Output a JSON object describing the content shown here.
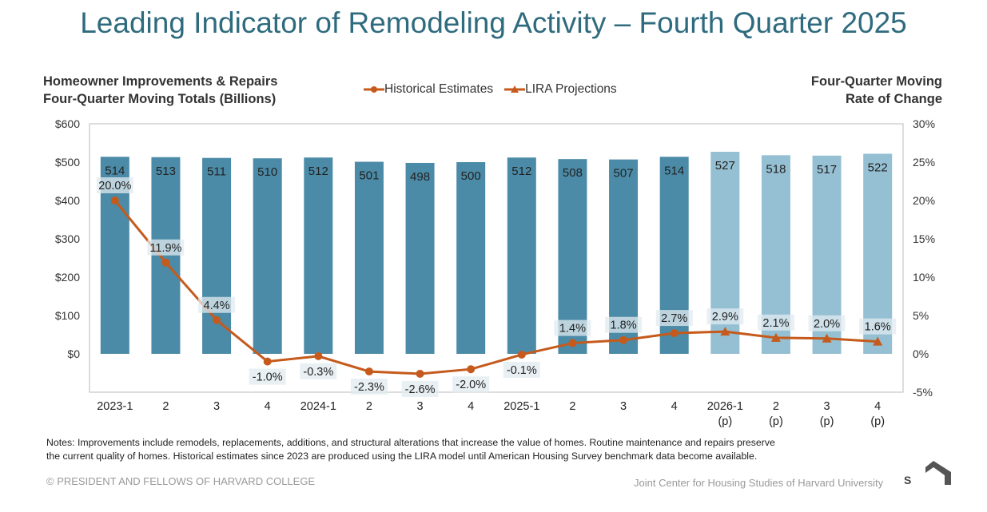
{
  "title": "Leading Indicator of Remodeling Activity – Fourth Quarter 2025",
  "notes_line1": "Notes: Improvements include remodels, replacements, additions, and structural alterations that increase the value of homes. Routine maintenance and repairs preserve",
  "notes_line2": "the current quality of homes. Historical estimates since 2023 are produced using the LIRA model until American Housing Survey benchmark data become available.",
  "copyright": "© PRESIDENT AND FELLOWS OF HARVARD COLLEGE",
  "org": "Joint Center for Housing Studies of Harvard University",
  "logo_text": "JCHS",
  "colors": {
    "historical_bar": "#4b8ba7",
    "projection_bar": "#95bfd2",
    "line": "#c55a1c",
    "title": "#2f6b7e"
  },
  "chart_data": {
    "type": "bar",
    "title": "Leading Indicator of Remodeling Activity – Fourth Quarter 2025",
    "ylabel_line1": "Homeowner Improvements & Repairs",
    "ylabel_line2": "Four-Quarter Moving Totals (Billions)",
    "y2label_line1": "Four-Quarter Moving",
    "y2label_line2": "Rate of Change",
    "ylim": [
      -100,
      600
    ],
    "y2lim": [
      -5,
      30
    ],
    "yticks": [
      "$600",
      "$500",
      "$400",
      "$300",
      "$200",
      "$100",
      "$0"
    ],
    "y2ticks": [
      "30%",
      "25%",
      "20%",
      "15%",
      "10%",
      "5%",
      "0%",
      "-5%"
    ],
    "categories": [
      "2023-1",
      "2",
      "3",
      "4",
      "2024-1",
      "2",
      "3",
      "4",
      "2025-1",
      "2",
      "3",
      "4",
      "2026-1",
      "2",
      "3",
      "4"
    ],
    "categories_sub": [
      "",
      "",
      "",
      "",
      "",
      "",
      "",
      "",
      "",
      "",
      "",
      "",
      "(p)",
      "(p)",
      "(p)",
      "(p)"
    ],
    "legend": [
      "Historical Estimates",
      "LIRA Projections"
    ],
    "series": [
      {
        "name": "Spending (Billions)",
        "values": [
          514,
          513,
          511,
          510,
          512,
          501,
          498,
          500,
          512,
          508,
          507,
          514,
          527,
          518,
          517,
          522
        ]
      },
      {
        "name": "Rate of Change (%)",
        "values": [
          20.0,
          11.9,
          4.4,
          -1.0,
          -0.3,
          -2.3,
          -2.6,
          -2.0,
          -0.1,
          1.4,
          1.8,
          2.7,
          2.9,
          2.1,
          2.0,
          1.6
        ],
        "labels": [
          "20.0%",
          "11.9%",
          "4.4%",
          "-1.0%",
          "-0.3%",
          "-2.3%",
          "-2.6%",
          "-2.0%",
          "-0.1%",
          "1.4%",
          "1.8%",
          "2.7%",
          "2.9%",
          "2.1%",
          "2.0%",
          "1.6%"
        ]
      }
    ],
    "projected_from_index": 12
  }
}
